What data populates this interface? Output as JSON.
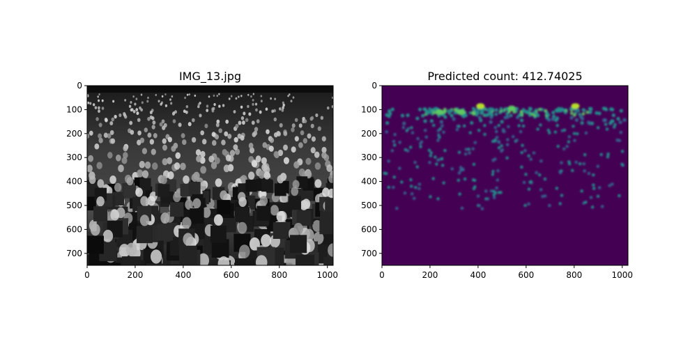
{
  "figure": {
    "left_panel": {
      "title": "IMG_13.jpg",
      "content": "grayscale photograph of a large formally dressed crowd",
      "xlim": [
        0,
        1024
      ],
      "ylim": [
        750,
        0
      ],
      "xticks": [
        0,
        200,
        400,
        600,
        800,
        1000
      ],
      "yticks": [
        0,
        100,
        200,
        300,
        400,
        500,
        600,
        700
      ]
    },
    "right_panel": {
      "title": "Predicted count: 412.74025",
      "xlim": [
        0,
        1024
      ],
      "ylim": [
        750,
        0
      ],
      "xticks": [
        0,
        200,
        400,
        600,
        800,
        1000
      ],
      "yticks": [
        0,
        100,
        200,
        300,
        400,
        500,
        600,
        700
      ],
      "colormap": {
        "background": "#440154",
        "low": "#31688e",
        "mid": "#21918c",
        "high": "#5ec962",
        "peak": "#b5de2b"
      }
    }
  },
  "chart_data": [
    {
      "type": "image",
      "title": "IMG_13.jpg",
      "xlim": [
        0,
        1024
      ],
      "ylim": [
        750,
        0
      ]
    },
    {
      "type": "heatmap",
      "title": "Predicted count: 412.74025",
      "predicted_count": 412.74025,
      "xlim": [
        0,
        1024
      ],
      "ylim": [
        750,
        0
      ],
      "hotspots": [
        {
          "x": 410,
          "y": 85,
          "intensity": 1.0
        },
        {
          "x": 540,
          "y": 95,
          "intensity": 0.9
        },
        {
          "x": 805,
          "y": 85,
          "intensity": 0.95
        },
        {
          "x": 330,
          "y": 110,
          "intensity": 0.7
        },
        {
          "x": 240,
          "y": 110,
          "intensity": 0.6
        }
      ]
    }
  ]
}
